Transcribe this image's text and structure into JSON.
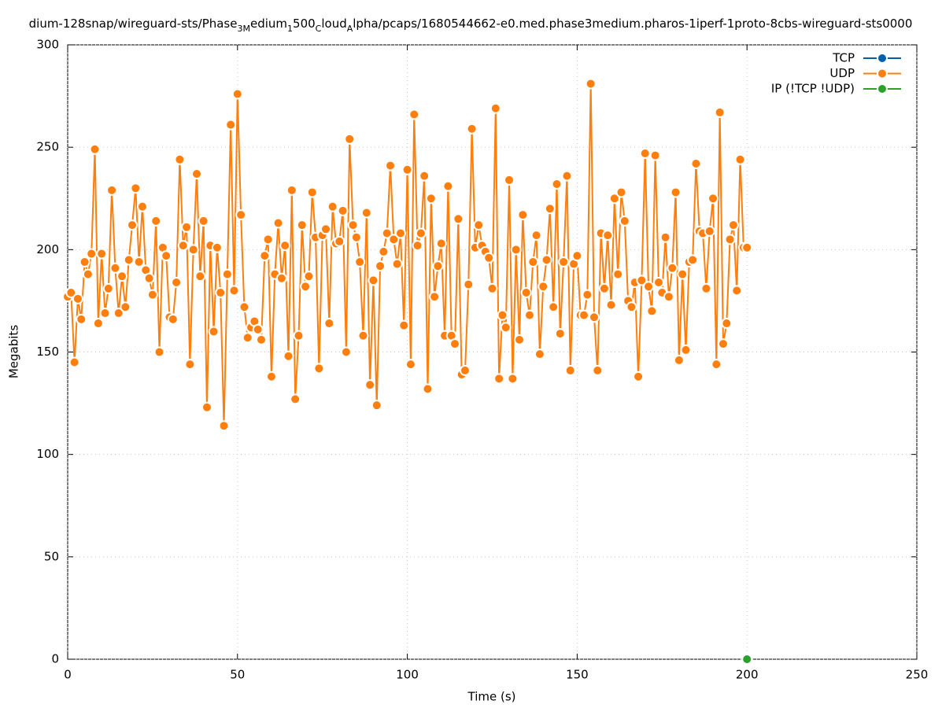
{
  "chart_data": {
    "type": "line",
    "title": [
      "dium-128snap/wireguard-sts/Phase",
      "3M",
      "edium",
      "1",
      "500",
      "C",
      "loud",
      "A",
      "lpha/pcaps/1680544662-e0.med.phase3medium.pharos-1iperf-1proto-8cbs-wireguard-sts0000"
    ],
    "title_subscript": [
      false,
      true,
      false,
      true,
      false,
      true,
      false,
      true,
      false
    ],
    "x_label": "Time (s)",
    "y_label": "Megabits",
    "xlim": [
      0,
      250
    ],
    "xticks": [
      0,
      50,
      100,
      150,
      200,
      250
    ],
    "ylim": [
      0,
      300
    ],
    "yticks": [
      0,
      50,
      100,
      150,
      200,
      250,
      300
    ],
    "grid": true,
    "legend": "top-right",
    "series": [
      {
        "name": "TCP",
        "color": "#0060ad",
        "x": [],
        "values": []
      },
      {
        "name": "UDP",
        "color": "#ff7f0e",
        "x": [
          0,
          1,
          2,
          3,
          4,
          5,
          6,
          7,
          8,
          9,
          10,
          11,
          12,
          13,
          14,
          15,
          16,
          17,
          18,
          19,
          20,
          21,
          22,
          23,
          24,
          25,
          26,
          27,
          28,
          29,
          30,
          31,
          32,
          33,
          34,
          35,
          36,
          37,
          38,
          39,
          40,
          41,
          42,
          43,
          44,
          45,
          46,
          47,
          48,
          49,
          50,
          51,
          52,
          53,
          54,
          55,
          56,
          57,
          58,
          59,
          60,
          61,
          62,
          63,
          64,
          65,
          66,
          67,
          68,
          69,
          70,
          71,
          72,
          73,
          74,
          75,
          76,
          77,
          78,
          79,
          80,
          81,
          82,
          83,
          84,
          85,
          86,
          87,
          88,
          89,
          90,
          91,
          92,
          93,
          94,
          95,
          96,
          97,
          98,
          99,
          100,
          101,
          102,
          103,
          104,
          105,
          106,
          107,
          108,
          109,
          110,
          111,
          112,
          113,
          114,
          115,
          116,
          117,
          118,
          119,
          120,
          121,
          122,
          123,
          124,
          125,
          126,
          127,
          128,
          129,
          130,
          131,
          132,
          133,
          134,
          135,
          136,
          137,
          138,
          139,
          140,
          141,
          142,
          143,
          144,
          145,
          146,
          147,
          148,
          149,
          150,
          151,
          152,
          153,
          154,
          155,
          156,
          157,
          158,
          159,
          160,
          161,
          162,
          163,
          164,
          165,
          166,
          167,
          168,
          169,
          170,
          171,
          172,
          173,
          174,
          175,
          176,
          177,
          178,
          179,
          180,
          181,
          182,
          183,
          184,
          185,
          186,
          187,
          188,
          189,
          190,
          191,
          192,
          193,
          194,
          195,
          196,
          197,
          198,
          199,
          200
        ],
        "values": [
          177,
          179,
          145,
          176,
          166,
          194,
          188,
          198,
          249,
          164,
          198,
          169,
          181,
          229,
          191,
          169,
          187,
          172,
          195,
          212,
          230,
          194,
          221,
          190,
          186,
          178,
          214,
          150,
          201,
          197,
          167,
          166,
          184,
          244,
          202,
          211,
          144,
          200,
          237,
          187,
          214,
          123,
          202,
          160,
          201,
          179,
          114,
          188,
          261,
          180,
          276,
          217,
          172,
          157,
          162,
          165,
          161,
          156,
          197,
          205,
          138,
          188,
          213,
          186,
          202,
          148,
          229,
          127,
          158,
          212,
          182,
          187,
          228,
          206,
          142,
          207,
          210,
          164,
          221,
          203,
          204,
          219,
          150,
          254,
          212,
          206,
          194,
          158,
          218,
          134,
          185,
          124,
          192,
          199,
          208,
          241,
          205,
          193,
          208,
          163,
          239,
          144,
          266,
          202,
          208,
          236,
          132,
          225,
          177,
          192,
          203,
          158,
          231,
          158,
          154,
          215,
          139,
          141,
          183,
          259,
          201,
          212,
          202,
          199,
          196,
          181,
          269,
          137,
          168,
          162,
          234,
          137,
          200,
          156,
          217,
          179,
          168,
          194,
          207,
          149,
          182,
          195,
          220,
          172,
          232,
          159,
          194,
          236,
          141,
          193,
          197,
          168,
          168,
          178,
          281,
          167,
          141,
          208,
          181,
          207,
          173,
          225,
          188,
          228,
          214,
          175,
          172,
          184,
          138,
          185,
          247,
          182,
          170,
          246,
          184,
          179,
          206,
          177,
          191,
          228,
          146,
          188,
          151,
          194,
          195,
          242,
          209,
          208,
          181,
          209,
          225,
          144,
          267,
          154,
          164,
          205,
          212,
          180,
          244,
          201,
          201
        ]
      },
      {
        "name": "IP (!TCP  !UDP)",
        "color": "#2ca02c",
        "x": [
          200
        ],
        "values": [
          0
        ]
      }
    ]
  }
}
